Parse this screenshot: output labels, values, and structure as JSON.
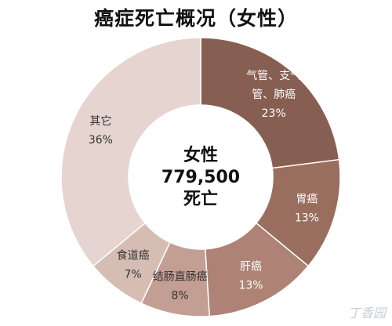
{
  "chart_data": {
    "type": "pie",
    "title": "癌症死亡概况（女性）",
    "center_text": [
      "女性",
      "779,500",
      "死亡"
    ],
    "slices": [
      {
        "label_lines": [
          "气管、支气",
          "管、肺癌"
        ],
        "value_label": "23%",
        "value": 23,
        "color": "#875f52",
        "text_color": "#ffffff"
      },
      {
        "label_lines": [
          "胃癌"
        ],
        "value_label": "13%",
        "value": 13,
        "color": "#9a6e5f",
        "text_color": "#ffffff"
      },
      {
        "label_lines": [
          "肝癌"
        ],
        "value_label": "13%",
        "value": 13,
        "color": "#ae8375",
        "text_color": "#ffffff"
      },
      {
        "label_lines": [
          "结肠直肠癌"
        ],
        "value_label": "8%",
        "value": 8,
        "color": "#c39e92",
        "text_color": "#333333"
      },
      {
        "label_lines": [
          "食道癌"
        ],
        "value_label": "7%",
        "value": 7,
        "color": "#d6bdb4",
        "text_color": "#333333"
      },
      {
        "label_lines": [
          "其它"
        ],
        "value_label": "36%",
        "value": 36,
        "color": "#e5d4cf",
        "text_color": "#333333"
      }
    ]
  },
  "watermark": "丁香园"
}
